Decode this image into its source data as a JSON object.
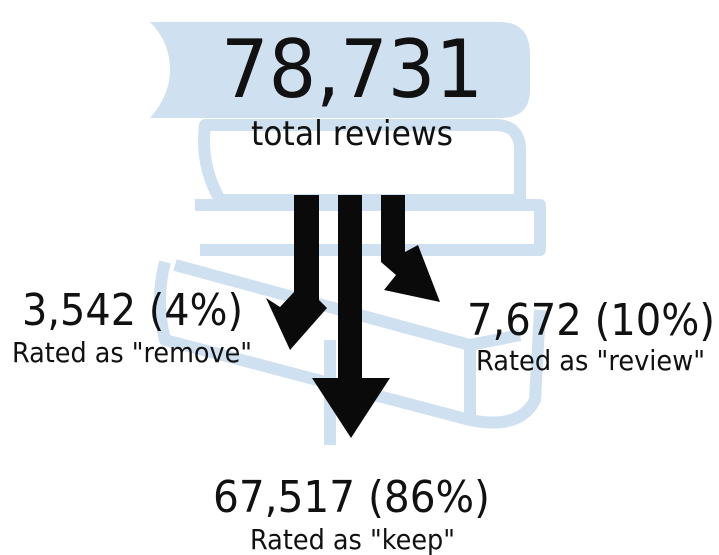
{
  "total": {
    "value": "78,731",
    "label": "total reviews"
  },
  "outcomes": [
    {
      "value": "3,542 (4%)",
      "label": "Rated as \"remove\""
    },
    {
      "value": "7,672 (10%)",
      "label": "Rated as \"review\""
    },
    {
      "value": "67,517 (86%)",
      "label": "Rated as \"keep\""
    }
  ]
}
